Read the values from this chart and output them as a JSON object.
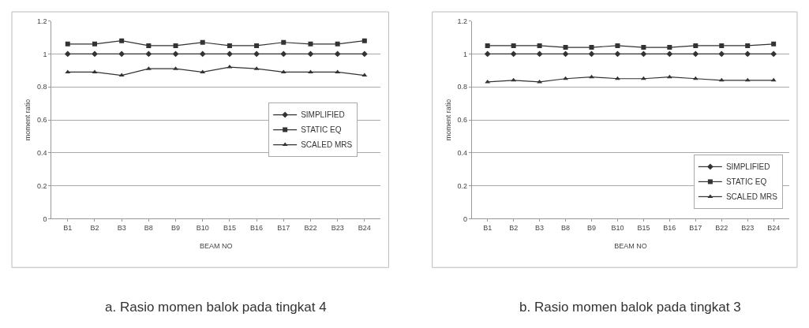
{
  "chart_data": [
    {
      "type": "line",
      "title": "a. Rasio momen balok pada tingkat 4",
      "xlabel": "BEAM NO",
      "ylabel": "moment ratio",
      "categories": [
        "B1",
        "B2",
        "B3",
        "B8",
        "B9",
        "B10",
        "B15",
        "B16",
        "B17",
        "B22",
        "B23",
        "B24"
      ],
      "series": [
        {
          "name": "SIMPLIFIED",
          "color": "#333333",
          "marker": "diamond",
          "values": [
            1.0,
            1.0,
            1.0,
            1.0,
            1.0,
            1.0,
            1.0,
            1.0,
            1.0,
            1.0,
            1.0,
            1.0
          ]
        },
        {
          "name": "STATIC EQ",
          "color": "#333333",
          "marker": "square",
          "values": [
            1.06,
            1.06,
            1.08,
            1.05,
            1.05,
            1.07,
            1.05,
            1.05,
            1.07,
            1.06,
            1.06,
            1.08
          ]
        },
        {
          "name": "SCALED MRS",
          "color": "#333333",
          "marker": "triangle",
          "values": [
            0.89,
            0.89,
            0.87,
            0.91,
            0.91,
            0.89,
            0.92,
            0.91,
            0.89,
            0.89,
            0.89,
            0.87
          ]
        }
      ],
      "ylim": [
        0,
        1.2
      ],
      "yticks": [
        0,
        0.2,
        0.4,
        0.6,
        0.8,
        1,
        1.2
      ],
      "grid": "y",
      "legend": "right"
    },
    {
      "type": "line",
      "title": "b. Rasio momen balok pada tingkat 3",
      "xlabel": "BEAM NO",
      "ylabel": "moment ratio",
      "categories": [
        "B1",
        "B2",
        "B3",
        "B8",
        "B9",
        "B10",
        "B15",
        "B16",
        "B17",
        "B22",
        "B23",
        "B24"
      ],
      "series": [
        {
          "name": "SIMPLIFIED",
          "color": "#333333",
          "marker": "diamond",
          "values": [
            1.0,
            1.0,
            1.0,
            1.0,
            1.0,
            1.0,
            1.0,
            1.0,
            1.0,
            1.0,
            1.0,
            1.0
          ]
        },
        {
          "name": "STATIC EQ",
          "color": "#333333",
          "marker": "square",
          "values": [
            1.05,
            1.05,
            1.05,
            1.04,
            1.04,
            1.05,
            1.04,
            1.04,
            1.05,
            1.05,
            1.05,
            1.06
          ]
        },
        {
          "name": "SCALED MRS",
          "color": "#333333",
          "marker": "triangle",
          "values": [
            0.83,
            0.84,
            0.83,
            0.85,
            0.86,
            0.85,
            0.85,
            0.86,
            0.85,
            0.84,
            0.84,
            0.84
          ]
        }
      ],
      "ylim": [
        0,
        1.2
      ],
      "yticks": [
        0,
        0.2,
        0.4,
        0.6,
        0.8,
        1,
        1.2
      ],
      "grid": "y",
      "legend": "bottom right"
    }
  ]
}
